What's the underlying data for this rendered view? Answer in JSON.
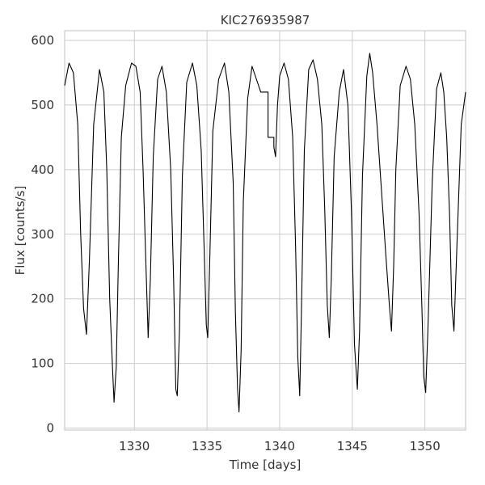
{
  "chart_data": {
    "type": "line",
    "title": "KIC276935987",
    "xlabel": "Time [days]",
    "ylabel": "Flux [counts/s]",
    "xlim": [
      1325.2,
      1352.8
    ],
    "ylim": [
      -3,
      615
    ],
    "xticks": [
      1330,
      1335,
      1340,
      1345,
      1350
    ],
    "yticks": [
      0,
      100,
      200,
      300,
      400,
      500,
      600
    ],
    "grid": true,
    "series": [
      {
        "color": "#000000",
        "x": [
          1325.2,
          1325.5,
          1325.8,
          1326.1,
          1326.3,
          1326.5,
          1326.7,
          1326.9,
          1327.2,
          1327.6,
          1327.9,
          1328.1,
          1328.3,
          1328.5,
          1328.6,
          1328.75,
          1328.9,
          1329.1,
          1329.4,
          1329.8,
          1330.1,
          1330.4,
          1330.6,
          1330.8,
          1330.95,
          1331.1,
          1331.3,
          1331.6,
          1331.9,
          1332.2,
          1332.5,
          1332.7,
          1332.85,
          1332.95,
          1333.1,
          1333.3,
          1333.6,
          1334.0,
          1334.3,
          1334.6,
          1334.8,
          1334.95,
          1335.05,
          1335.2,
          1335.4,
          1335.8,
          1336.2,
          1336.5,
          1336.8,
          1336.95,
          1337.1,
          1337.2,
          1337.35,
          1337.5,
          1337.8,
          1338.1,
          1338.4,
          1338.7,
          1339.2,
          1339.2,
          1339.6,
          1339.6,
          1339.72,
          1339.85,
          1340.0,
          1340.3,
          1340.6,
          1340.9,
          1341.1,
          1341.25,
          1341.38,
          1341.5,
          1341.7,
          1342.0,
          1342.3,
          1342.6,
          1342.9,
          1343.1,
          1343.28,
          1343.42,
          1343.55,
          1343.75,
          1344.1,
          1344.4,
          1344.7,
          1344.95,
          1345.15,
          1345.35,
          1345.5,
          1345.7,
          1346.0,
          1346.2,
          1346.4,
          1346.7,
          1347.0,
          1347.3,
          1347.55,
          1347.7,
          1347.85,
          1348.0,
          1348.3,
          1348.7,
          1349.0,
          1349.3,
          1349.6,
          1349.8,
          1349.92,
          1350.05,
          1350.2,
          1350.5,
          1350.8,
          1351.1,
          1351.3,
          1351.5,
          1351.7,
          1351.85,
          1352.0,
          1352.2,
          1352.5,
          1352.8
        ],
        "y": [
          530,
          565,
          550,
          470,
          300,
          185,
          145,
          260,
          470,
          555,
          520,
          400,
          200,
          90,
          40,
          95,
          260,
          450,
          530,
          565,
          560,
          520,
          400,
          250,
          140,
          230,
          420,
          540,
          560,
          520,
          400,
          230,
          60,
          50,
          150,
          390,
          535,
          565,
          530,
          430,
          280,
          160,
          140,
          270,
          460,
          540,
          565,
          520,
          380,
          180,
          60,
          25,
          120,
          350,
          510,
          560,
          540,
          520,
          520,
          450,
          450,
          435,
          420,
          500,
          545,
          565,
          540,
          450,
          280,
          110,
          50,
          180,
          430,
          555,
          570,
          540,
          470,
          340,
          190,
          140,
          230,
          420,
          520,
          555,
          500,
          330,
          130,
          60,
          150,
          390,
          545,
          580,
          550,
          470,
          370,
          270,
          190,
          150,
          250,
          400,
          530,
          560,
          540,
          470,
          330,
          180,
          80,
          55,
          150,
          380,
          525,
          550,
          520,
          450,
          330,
          190,
          150,
          280,
          470,
          520
        ]
      }
    ]
  }
}
